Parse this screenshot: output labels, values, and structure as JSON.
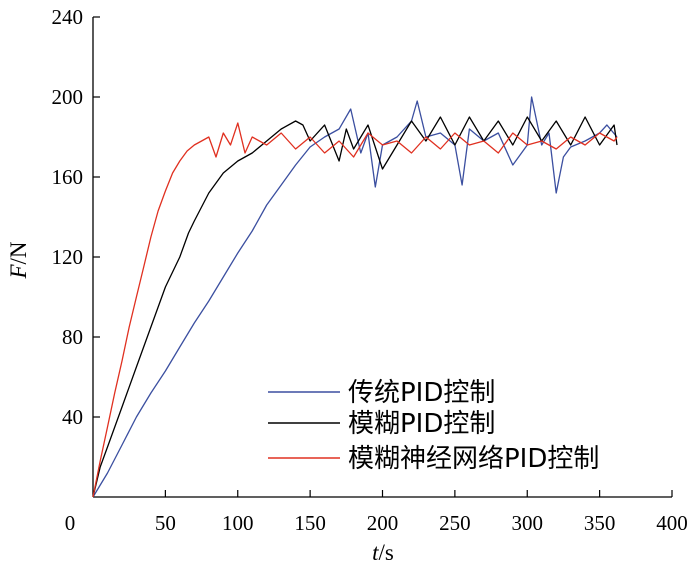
{
  "chart_data": {
    "type": "line",
    "xlabel": {
      "var": "t",
      "unit": "/s"
    },
    "ylabel": {
      "var": "F",
      "unit": "/N"
    },
    "xlim": [
      0,
      400
    ],
    "ylim": [
      0,
      240
    ],
    "xticks": [
      0,
      50,
      100,
      150,
      200,
      250,
      300,
      350,
      400
    ],
    "yticks": [
      40,
      80,
      120,
      160,
      200,
      240
    ],
    "legend_position": "bottom-right",
    "grid": false,
    "series": [
      {
        "name": "传统PID控制",
        "color": "#3b4fa0",
        "x": [
          0,
          10,
          20,
          30,
          40,
          50,
          60,
          70,
          80,
          90,
          100,
          110,
          120,
          130,
          140,
          150,
          160,
          170,
          178,
          185,
          190,
          195,
          200,
          210,
          220,
          224,
          230,
          240,
          250,
          255,
          260,
          270,
          280,
          290,
          300,
          303,
          310,
          315,
          320,
          325,
          330,
          340,
          350,
          355,
          362
        ],
        "y": [
          0,
          12,
          26,
          40,
          52,
          63,
          75,
          87,
          98,
          110,
          122,
          133,
          146,
          156,
          166,
          175,
          180,
          184,
          194,
          172,
          182,
          155,
          176,
          180,
          188,
          198,
          180,
          182,
          176,
          156,
          184,
          178,
          182,
          166,
          176,
          200,
          176,
          182,
          152,
          170,
          175,
          178,
          182,
          186,
          180
        ]
      },
      {
        "name": "模糊PID控制",
        "color": "#000000",
        "x": [
          0,
          5,
          10,
          20,
          30,
          40,
          50,
          60,
          66,
          70,
          80,
          90,
          100,
          110,
          120,
          130,
          140,
          145,
          150,
          160,
          170,
          175,
          180,
          190,
          200,
          210,
          220,
          230,
          240,
          250,
          260,
          270,
          280,
          290,
          300,
          310,
          320,
          330,
          340,
          350,
          360,
          362
        ],
        "y": [
          0,
          15,
          25,
          45,
          65,
          85,
          105,
          120,
          132,
          138,
          152,
          162,
          168,
          172,
          178,
          184,
          188,
          186,
          178,
          186,
          168,
          184,
          174,
          186,
          164,
          176,
          188,
          178,
          190,
          176,
          190,
          178,
          188,
          176,
          190,
          178,
          188,
          176,
          190,
          176,
          186,
          176
        ]
      },
      {
        "name": "模糊神经网络PID控制",
        "color": "#e03020",
        "x": [
          0,
          5,
          10,
          15,
          20,
          25,
          30,
          35,
          40,
          45,
          50,
          55,
          60,
          65,
          70,
          75,
          80,
          85,
          90,
          95,
          100,
          105,
          110,
          120,
          130,
          140,
          150,
          160,
          170,
          180,
          190,
          200,
          210,
          220,
          230,
          240,
          250,
          260,
          270,
          280,
          290,
          300,
          310,
          320,
          330,
          340,
          350,
          360,
          362
        ],
        "y": [
          0,
          18,
          35,
          52,
          68,
          85,
          100,
          115,
          130,
          143,
          153,
          162,
          168,
          173,
          176,
          178,
          180,
          170,
          182,
          176,
          187,
          172,
          180,
          176,
          182,
          174,
          180,
          172,
          178,
          170,
          182,
          176,
          178,
          172,
          180,
          174,
          182,
          176,
          178,
          172,
          182,
          176,
          178,
          174,
          180,
          176,
          182,
          178,
          180
        ]
      }
    ]
  }
}
